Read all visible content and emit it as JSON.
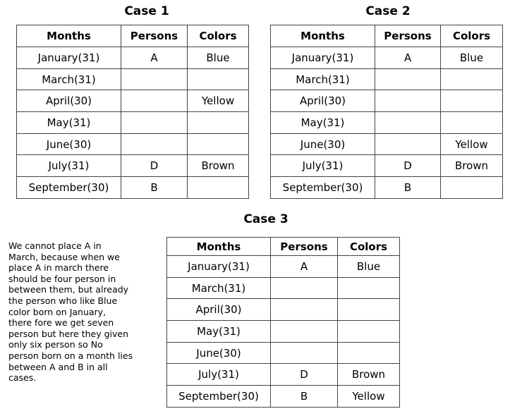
{
  "tables": [
    {
      "title": "Case 1",
      "header": [
        "Months",
        "Persons",
        "Colors"
      ],
      "rows": [
        [
          "January(31)",
          "A",
          "Blue"
        ],
        [
          "March(31)",
          null,
          null
        ],
        [
          "April(30)",
          null,
          "Yellow"
        ],
        [
          "May(31)",
          null,
          null
        ],
        [
          "June(30)",
          null,
          null
        ],
        [
          "July(31)",
          "D",
          "Brown"
        ],
        [
          "September(30)",
          "B",
          null
        ]
      ]
    },
    {
      "title": "Case 2",
      "header": [
        "Months",
        "Persons",
        "Colors"
      ],
      "rows": [
        [
          "January(31)",
          "A",
          "Blue"
        ],
        [
          "March(31)",
          null,
          null
        ],
        [
          "April(30)",
          null,
          null
        ],
        [
          "May(31)",
          null,
          null
        ],
        [
          "June(30)",
          null,
          "Yellow"
        ],
        [
          "July(31)",
          "D",
          "Brown"
        ],
        [
          "September(30)",
          "B",
          null
        ]
      ]
    },
    {
      "title": "Case 3",
      "header": [
        "Months",
        "Persons",
        "Colors"
      ],
      "rows": [
        [
          "January(31)",
          "A",
          "Blue"
        ],
        [
          "March(31)",
          null,
          null
        ],
        [
          "April(30)",
          null,
          null
        ],
        [
          "May(31)",
          null,
          null
        ],
        [
          "June(30)",
          null,
          null
        ],
        [
          "July(31)",
          "D",
          "Brown"
        ],
        [
          "September(30)",
          "B",
          "Yellow"
        ]
      ]
    }
  ],
  "note": [
    "We cannot place A in",
    "March,  because when we",
    "place A in march  there",
    "should be four person in",
    "between them, but already",
    "the person who like Blue",
    "color  born on January,",
    "there fore we get seven",
    "person but here they given",
    "only six person so No",
    "person born on a month lies",
    "between A and B in all",
    "cases."
  ]
}
